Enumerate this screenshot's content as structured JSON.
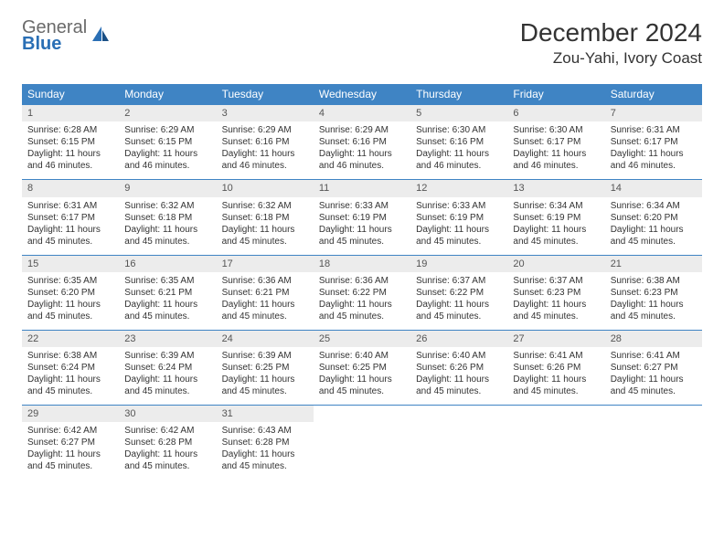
{
  "brand": {
    "general": "General",
    "blue": "Blue"
  },
  "title": "December 2024",
  "location": "Zou-Yahi, Ivory Coast",
  "colors": {
    "header_bg": "#3f84c4",
    "header_text": "#ffffff",
    "daynum_bg": "#ececec",
    "border": "#3f84c4",
    "brand_grey": "#6a6a6a",
    "brand_blue": "#2a6fb5"
  },
  "weekdays": [
    "Sunday",
    "Monday",
    "Tuesday",
    "Wednesday",
    "Thursday",
    "Friday",
    "Saturday"
  ],
  "days": [
    {
      "n": "1",
      "sunrise": "Sunrise: 6:28 AM",
      "sunset": "Sunset: 6:15 PM",
      "daylight": "Daylight: 11 hours and 46 minutes."
    },
    {
      "n": "2",
      "sunrise": "Sunrise: 6:29 AM",
      "sunset": "Sunset: 6:15 PM",
      "daylight": "Daylight: 11 hours and 46 minutes."
    },
    {
      "n": "3",
      "sunrise": "Sunrise: 6:29 AM",
      "sunset": "Sunset: 6:16 PM",
      "daylight": "Daylight: 11 hours and 46 minutes."
    },
    {
      "n": "4",
      "sunrise": "Sunrise: 6:29 AM",
      "sunset": "Sunset: 6:16 PM",
      "daylight": "Daylight: 11 hours and 46 minutes."
    },
    {
      "n": "5",
      "sunrise": "Sunrise: 6:30 AM",
      "sunset": "Sunset: 6:16 PM",
      "daylight": "Daylight: 11 hours and 46 minutes."
    },
    {
      "n": "6",
      "sunrise": "Sunrise: 6:30 AM",
      "sunset": "Sunset: 6:17 PM",
      "daylight": "Daylight: 11 hours and 46 minutes."
    },
    {
      "n": "7",
      "sunrise": "Sunrise: 6:31 AM",
      "sunset": "Sunset: 6:17 PM",
      "daylight": "Daylight: 11 hours and 46 minutes."
    },
    {
      "n": "8",
      "sunrise": "Sunrise: 6:31 AM",
      "sunset": "Sunset: 6:17 PM",
      "daylight": "Daylight: 11 hours and 45 minutes."
    },
    {
      "n": "9",
      "sunrise": "Sunrise: 6:32 AM",
      "sunset": "Sunset: 6:18 PM",
      "daylight": "Daylight: 11 hours and 45 minutes."
    },
    {
      "n": "10",
      "sunrise": "Sunrise: 6:32 AM",
      "sunset": "Sunset: 6:18 PM",
      "daylight": "Daylight: 11 hours and 45 minutes."
    },
    {
      "n": "11",
      "sunrise": "Sunrise: 6:33 AM",
      "sunset": "Sunset: 6:19 PM",
      "daylight": "Daylight: 11 hours and 45 minutes."
    },
    {
      "n": "12",
      "sunrise": "Sunrise: 6:33 AM",
      "sunset": "Sunset: 6:19 PM",
      "daylight": "Daylight: 11 hours and 45 minutes."
    },
    {
      "n": "13",
      "sunrise": "Sunrise: 6:34 AM",
      "sunset": "Sunset: 6:19 PM",
      "daylight": "Daylight: 11 hours and 45 minutes."
    },
    {
      "n": "14",
      "sunrise": "Sunrise: 6:34 AM",
      "sunset": "Sunset: 6:20 PM",
      "daylight": "Daylight: 11 hours and 45 minutes."
    },
    {
      "n": "15",
      "sunrise": "Sunrise: 6:35 AM",
      "sunset": "Sunset: 6:20 PM",
      "daylight": "Daylight: 11 hours and 45 minutes."
    },
    {
      "n": "16",
      "sunrise": "Sunrise: 6:35 AM",
      "sunset": "Sunset: 6:21 PM",
      "daylight": "Daylight: 11 hours and 45 minutes."
    },
    {
      "n": "17",
      "sunrise": "Sunrise: 6:36 AM",
      "sunset": "Sunset: 6:21 PM",
      "daylight": "Daylight: 11 hours and 45 minutes."
    },
    {
      "n": "18",
      "sunrise": "Sunrise: 6:36 AM",
      "sunset": "Sunset: 6:22 PM",
      "daylight": "Daylight: 11 hours and 45 minutes."
    },
    {
      "n": "19",
      "sunrise": "Sunrise: 6:37 AM",
      "sunset": "Sunset: 6:22 PM",
      "daylight": "Daylight: 11 hours and 45 minutes."
    },
    {
      "n": "20",
      "sunrise": "Sunrise: 6:37 AM",
      "sunset": "Sunset: 6:23 PM",
      "daylight": "Daylight: 11 hours and 45 minutes."
    },
    {
      "n": "21",
      "sunrise": "Sunrise: 6:38 AM",
      "sunset": "Sunset: 6:23 PM",
      "daylight": "Daylight: 11 hours and 45 minutes."
    },
    {
      "n": "22",
      "sunrise": "Sunrise: 6:38 AM",
      "sunset": "Sunset: 6:24 PM",
      "daylight": "Daylight: 11 hours and 45 minutes."
    },
    {
      "n": "23",
      "sunrise": "Sunrise: 6:39 AM",
      "sunset": "Sunset: 6:24 PM",
      "daylight": "Daylight: 11 hours and 45 minutes."
    },
    {
      "n": "24",
      "sunrise": "Sunrise: 6:39 AM",
      "sunset": "Sunset: 6:25 PM",
      "daylight": "Daylight: 11 hours and 45 minutes."
    },
    {
      "n": "25",
      "sunrise": "Sunrise: 6:40 AM",
      "sunset": "Sunset: 6:25 PM",
      "daylight": "Daylight: 11 hours and 45 minutes."
    },
    {
      "n": "26",
      "sunrise": "Sunrise: 6:40 AM",
      "sunset": "Sunset: 6:26 PM",
      "daylight": "Daylight: 11 hours and 45 minutes."
    },
    {
      "n": "27",
      "sunrise": "Sunrise: 6:41 AM",
      "sunset": "Sunset: 6:26 PM",
      "daylight": "Daylight: 11 hours and 45 minutes."
    },
    {
      "n": "28",
      "sunrise": "Sunrise: 6:41 AM",
      "sunset": "Sunset: 6:27 PM",
      "daylight": "Daylight: 11 hours and 45 minutes."
    },
    {
      "n": "29",
      "sunrise": "Sunrise: 6:42 AM",
      "sunset": "Sunset: 6:27 PM",
      "daylight": "Daylight: 11 hours and 45 minutes."
    },
    {
      "n": "30",
      "sunrise": "Sunrise: 6:42 AM",
      "sunset": "Sunset: 6:28 PM",
      "daylight": "Daylight: 11 hours and 45 minutes."
    },
    {
      "n": "31",
      "sunrise": "Sunrise: 6:43 AM",
      "sunset": "Sunset: 6:28 PM",
      "daylight": "Daylight: 11 hours and 45 minutes."
    }
  ]
}
